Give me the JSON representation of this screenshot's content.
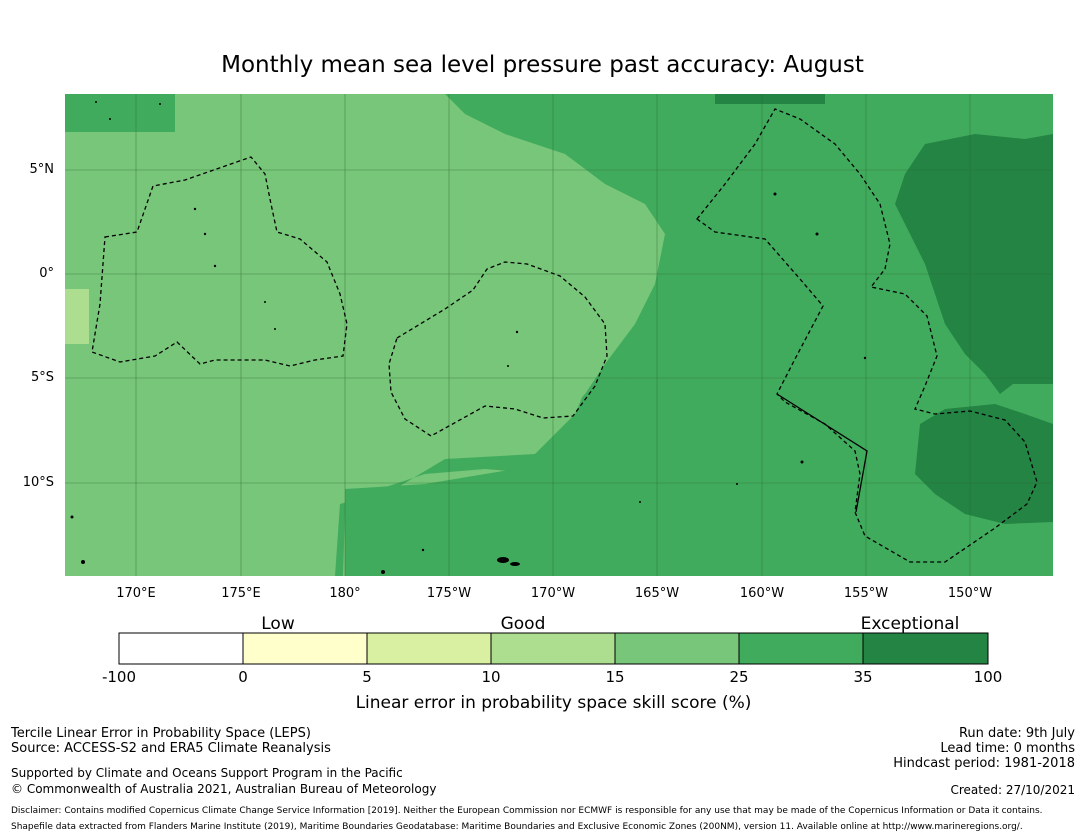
{
  "title": "Monthly mean sea level pressure past accuracy: August",
  "map": {
    "lat_ticks": [
      "5°N",
      "0°",
      "5°S",
      "10°S"
    ],
    "lon_ticks": [
      "170°E",
      "175°E",
      "180°",
      "175°W",
      "170°W",
      "165°W",
      "160°W",
      "155°W",
      "150°W"
    ],
    "colors": {
      "c_15_25": "#78c679",
      "c_25_35": "#41ab5d",
      "c_35_100": "#238443",
      "c_10_15": "#addd8e",
      "grid": "#2d6a33"
    }
  },
  "colorbar": {
    "categories": [
      "Low",
      "Good",
      "Exceptional"
    ],
    "ticks": [
      "-100",
      "0",
      "5",
      "10",
      "15",
      "25",
      "35",
      "100"
    ],
    "colors": [
      "#ffffff",
      "#ffffcc",
      "#d9f0a3",
      "#addd8e",
      "#78c679",
      "#41ab5d",
      "#238443"
    ],
    "label": "Linear error in probability space skill score (%)"
  },
  "info": {
    "method": "Tercile Linear Error in Probability Space (LEPS)",
    "source": "Source: ACCESS-S2 and ERA5 Climate Reanalysis",
    "support": "Supported by Climate and Oceans Support Program in the Pacific",
    "copyright": "© Commonwealth of Australia 2021, Australian Bureau of Meteorology",
    "run_date": "Run date: 9th July",
    "lead_time": "Lead time: 0 months",
    "hindcast": "Hindcast period: 1981-2018",
    "created": "Created: 27/10/2021",
    "disclaimer": "Disclaimer: Contains modified Copernicus Climate Change Service Information [2019]. Neither the European Commission nor ECMWF is responsible for any use that may be made of the Copernicus Information or Data it contains.",
    "shapefile": "Shapefile data extracted from Flanders Marine Institute (2019), Maritime Boundaries Geodatabase: Maritime Boundaries and Exclusive Economic Zones (200NM), version 11. Available online at http://www.marineregions.org/."
  }
}
